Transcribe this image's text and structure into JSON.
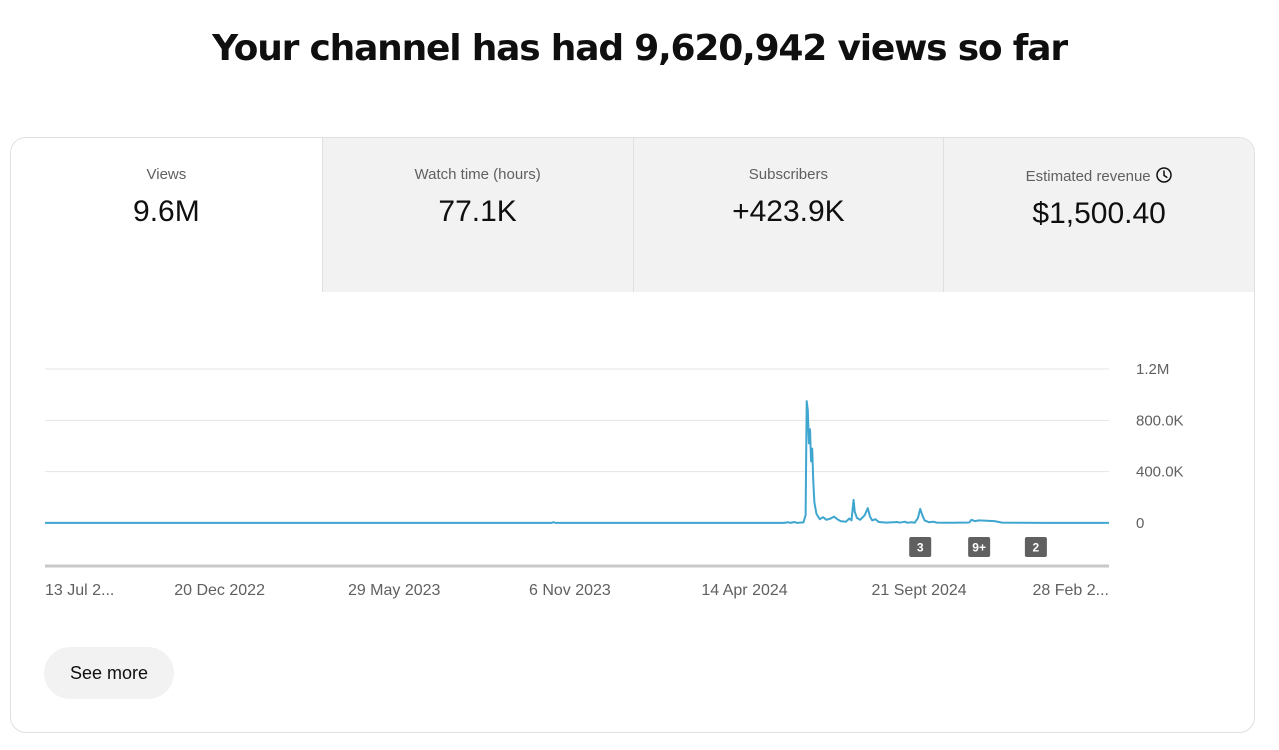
{
  "headline": "Your channel has had 9,620,942 views so far",
  "tabs": [
    {
      "label": "Views",
      "value": "9.6M"
    },
    {
      "label": "Watch time (hours)",
      "value": "77.1K"
    },
    {
      "label": "Subscribers",
      "value": "+423.9K"
    },
    {
      "label": "Estimated revenue",
      "value": "$1,500.40"
    }
  ],
  "icons": {
    "revenue_info": "clock-icon"
  },
  "see_more_label": "See more",
  "chart_data": {
    "type": "line",
    "ylabel": "",
    "xlabel": "",
    "ylim": [
      0,
      1200000
    ],
    "y_ticks": [
      0,
      400000,
      800000,
      1200000
    ],
    "y_tick_labels": [
      "0",
      "400.0K",
      "800.0K",
      "1.2M"
    ],
    "x_range": [
      "2022-07-13",
      "2025-03-14"
    ],
    "x_ticks": [
      {
        "date": "2022-07-13",
        "label": "13 Jul 2..."
      },
      {
        "date": "2022-12-20",
        "label": "20 Dec 2022"
      },
      {
        "date": "2023-05-29",
        "label": "29 May 2023"
      },
      {
        "date": "2023-11-06",
        "label": "6 Nov 2023"
      },
      {
        "date": "2024-04-14",
        "label": "14 Apr 2024"
      },
      {
        "date": "2024-09-21",
        "label": "21 Sept 2024"
      },
      {
        "date": "2025-02-28",
        "label": "28 Feb 2..."
      }
    ],
    "series": [
      {
        "color": "#3ea6cf",
        "points": [
          [
            "2022-07-13",
            1000
          ],
          [
            "2023-10-20",
            1000
          ],
          [
            "2023-10-22",
            6000
          ],
          [
            "2023-10-24",
            1000
          ],
          [
            "2024-05-20",
            1000
          ],
          [
            "2024-05-24",
            6000
          ],
          [
            "2024-05-26",
            1000
          ],
          [
            "2024-05-30",
            8000
          ],
          [
            "2024-06-01",
            1000
          ],
          [
            "2024-06-07",
            5000
          ],
          [
            "2024-06-09",
            60000
          ],
          [
            "2024-06-10",
            950000
          ],
          [
            "2024-06-11",
            880000
          ],
          [
            "2024-06-12",
            620000
          ],
          [
            "2024-06-13",
            730000
          ],
          [
            "2024-06-14",
            480000
          ],
          [
            "2024-06-15",
            580000
          ],
          [
            "2024-06-16",
            320000
          ],
          [
            "2024-06-17",
            160000
          ],
          [
            "2024-06-19",
            70000
          ],
          [
            "2024-06-22",
            30000
          ],
          [
            "2024-06-25",
            45000
          ],
          [
            "2024-06-28",
            25000
          ],
          [
            "2024-07-02",
            35000
          ],
          [
            "2024-07-05",
            50000
          ],
          [
            "2024-07-08",
            30000
          ],
          [
            "2024-07-11",
            15000
          ],
          [
            "2024-07-16",
            10000
          ],
          [
            "2024-07-19",
            35000
          ],
          [
            "2024-07-21",
            20000
          ],
          [
            "2024-07-23",
            180000
          ],
          [
            "2024-07-24",
            90000
          ],
          [
            "2024-07-26",
            40000
          ],
          [
            "2024-07-29",
            25000
          ],
          [
            "2024-08-02",
            60000
          ],
          [
            "2024-08-05",
            115000
          ],
          [
            "2024-08-07",
            50000
          ],
          [
            "2024-08-09",
            20000
          ],
          [
            "2024-08-12",
            30000
          ],
          [
            "2024-08-15",
            8000
          ],
          [
            "2024-08-22",
            3000
          ],
          [
            "2024-09-01",
            8000
          ],
          [
            "2024-09-03",
            2000
          ],
          [
            "2024-09-08",
            10000
          ],
          [
            "2024-09-10",
            2000
          ],
          [
            "2024-09-14",
            6000
          ],
          [
            "2024-09-17",
            2000
          ],
          [
            "2024-09-20",
            40000
          ],
          [
            "2024-09-22",
            110000
          ],
          [
            "2024-09-24",
            60000
          ],
          [
            "2024-09-26",
            20000
          ],
          [
            "2024-09-30",
            6000
          ],
          [
            "2024-10-04",
            10000
          ],
          [
            "2024-10-07",
            3000
          ],
          [
            "2024-10-20",
            2000
          ],
          [
            "2024-11-06",
            4000
          ],
          [
            "2024-11-08",
            25000
          ],
          [
            "2024-11-11",
            15000
          ],
          [
            "2024-11-15",
            20000
          ],
          [
            "2024-11-22",
            18000
          ],
          [
            "2024-11-29",
            15000
          ],
          [
            "2024-12-06",
            3000
          ],
          [
            "2025-01-15",
            1000
          ],
          [
            "2025-03-14",
            1000
          ]
        ]
      }
    ],
    "markers": [
      {
        "date": "2024-09-22",
        "label": "3"
      },
      {
        "date": "2024-11-15",
        "label": "9+"
      },
      {
        "date": "2025-01-06",
        "label": "2"
      }
    ]
  }
}
